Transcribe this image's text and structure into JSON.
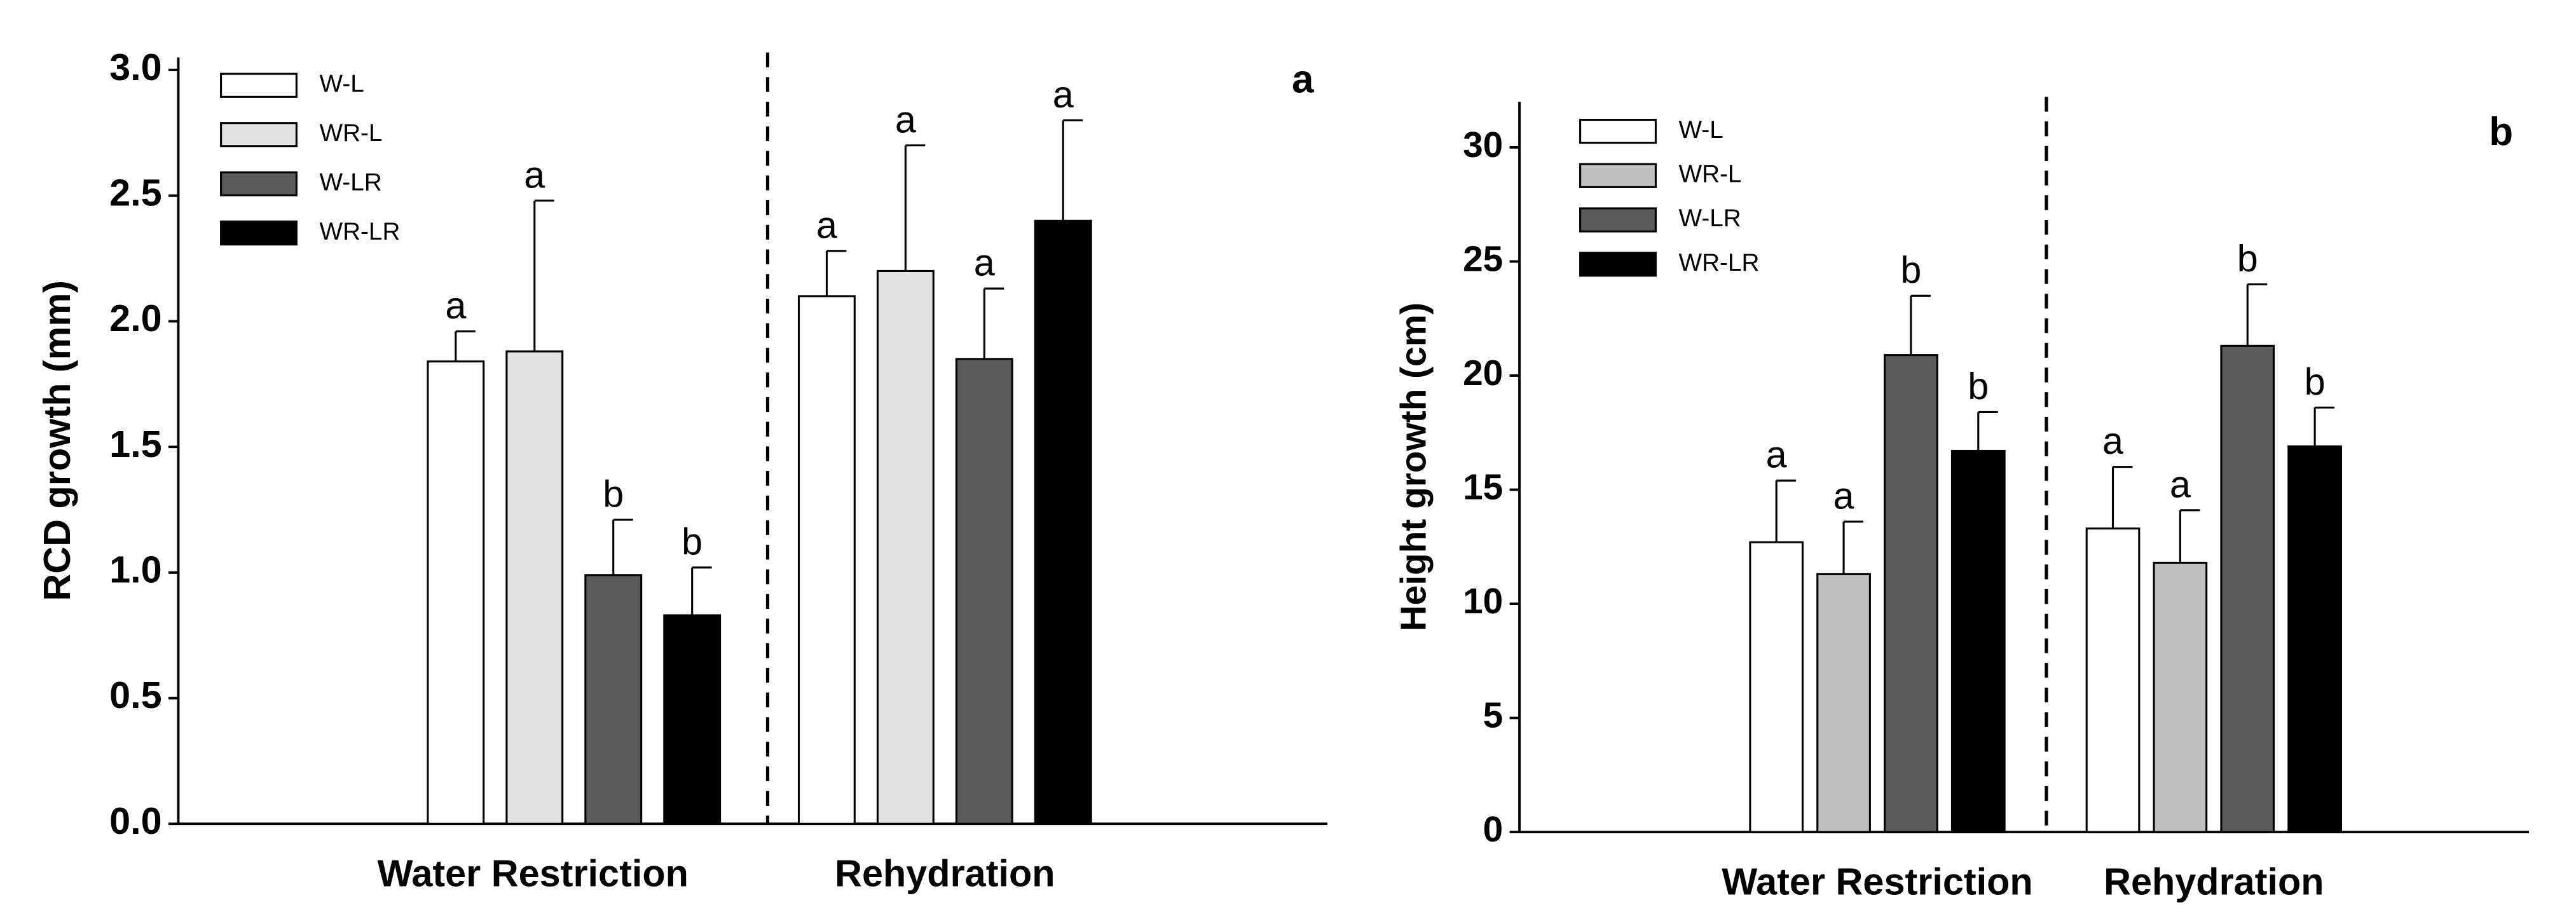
{
  "chart_data": [
    {
      "type": "bar",
      "panel_label": "a",
      "ylabel": "RCD growth (mm)",
      "categories": [
        "Water Restriction",
        "Rehydration"
      ],
      "ylim": [
        0,
        3.05
      ],
      "yticks": [
        {
          "value": 0,
          "label": "0.0"
        },
        0.5,
        {
          "value": 1,
          "label": "1.0"
        },
        1.5,
        {
          "value": 2,
          "label": "2.0"
        },
        2.5,
        {
          "value": 3,
          "label": "3.0"
        }
      ],
      "series": [
        {
          "name": "W-L",
          "color": "#ffffff",
          "values": [
            1.84,
            2.1
          ],
          "errors": [
            0.12,
            0.18
          ],
          "letters": [
            "a",
            "a"
          ]
        },
        {
          "name": "WR-L",
          "color": "#e0e0e0",
          "values": [
            1.88,
            2.2
          ],
          "errors": [
            0.6,
            0.5
          ],
          "letters": [
            "a",
            "a"
          ]
        },
        {
          "name": "W-LR",
          "color": "#5a5a5a",
          "values": [
            0.99,
            1.85
          ],
          "errors": [
            0.22,
            0.28
          ],
          "letters": [
            "b",
            "a"
          ]
        },
        {
          "name": "WR-LR",
          "color": "#000000",
          "values": [
            0.83,
            2.4
          ],
          "errors": [
            0.19,
            0.4
          ],
          "letters": [
            "b",
            "a"
          ]
        }
      ]
    },
    {
      "type": "bar",
      "panel_label": "b",
      "ylabel": "Height growth (cm)",
      "categories": [
        "Water Restriction",
        "Rehydration"
      ],
      "ylim": [
        0,
        32
      ],
      "yticks": [
        0,
        5,
        10,
        15,
        20,
        25,
        30
      ],
      "series": [
        {
          "name": "W-L",
          "color": "#ffffff",
          "values": [
            12.7,
            13.3
          ],
          "errors": [
            2.7,
            2.7
          ],
          "letters": [
            "a",
            "a"
          ]
        },
        {
          "name": "WR-L",
          "color": "#c0c0c0",
          "values": [
            11.3,
            11.8
          ],
          "errors": [
            2.3,
            2.3
          ],
          "letters": [
            "a",
            "a"
          ]
        },
        {
          "name": "W-LR",
          "color": "#5a5a5a",
          "values": [
            20.9,
            21.3
          ],
          "errors": [
            2.6,
            2.7
          ],
          "letters": [
            "b",
            "b"
          ]
        },
        {
          "name": "WR-LR",
          "color": "#000000",
          "values": [
            16.7,
            16.9
          ],
          "errors": [
            1.7,
            1.7
          ],
          "letters": [
            "b",
            "b"
          ]
        }
      ]
    }
  ]
}
